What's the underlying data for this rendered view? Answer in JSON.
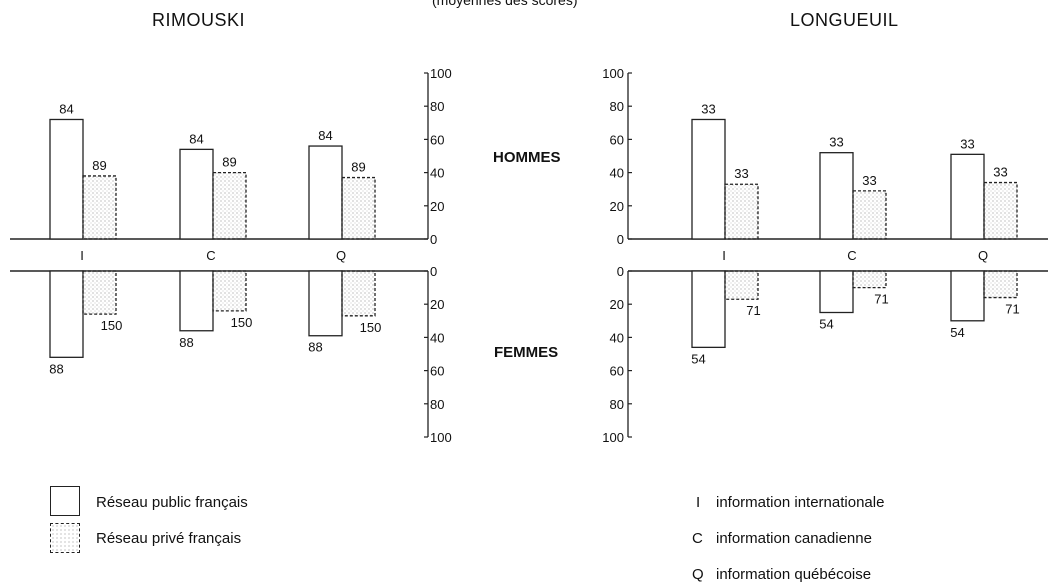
{
  "header": {
    "subtitle": "(moyennes des scores)"
  },
  "row_labels": {
    "men": "HOMMES",
    "women": "FEMMES"
  },
  "legend": {
    "public": "Réseau public français",
    "private": "Réseau privé français",
    "codes": [
      {
        "code": "I",
        "text": "information internationale"
      },
      {
        "code": "C",
        "text": "information canadienne"
      },
      {
        "code": "Q",
        "text": "information québécoise"
      }
    ]
  },
  "colors": {
    "line": "#222222",
    "public_fill": "#ffffff",
    "private_dots": "#9a9a9a"
  },
  "chart_data": [
    {
      "type": "bar",
      "title": "RIMOUSKI",
      "categories": [
        "I",
        "C",
        "Q"
      ],
      "ylim": [
        0,
        100
      ],
      "ticks": [
        0,
        20,
        40,
        60,
        80,
        100
      ],
      "series": [
        {
          "name": "Réseau public français",
          "men": [
            72,
            54,
            56
          ],
          "women": [
            52,
            36,
            39
          ],
          "labels_men": [
            "84",
            "84",
            "84"
          ],
          "labels_women": [
            "88",
            "88",
            "88"
          ]
        },
        {
          "name": "Réseau privé français",
          "men": [
            38,
            40,
            37
          ],
          "women": [
            26,
            24,
            27
          ],
          "labels_men": [
            "89",
            "89",
            "89"
          ],
          "labels_women": [
            "150",
            "150",
            "150"
          ]
        }
      ]
    },
    {
      "type": "bar",
      "title": "LONGUEUIL",
      "categories": [
        "I",
        "C",
        "Q"
      ],
      "ylim": [
        0,
        100
      ],
      "ticks": [
        0,
        20,
        40,
        60,
        80,
        100
      ],
      "series": [
        {
          "name": "Réseau public français",
          "men": [
            72,
            52,
            51
          ],
          "women": [
            46,
            25,
            30
          ],
          "labels_men": [
            "33",
            "33",
            "33"
          ],
          "labels_women": [
            "54",
            "54",
            "54"
          ]
        },
        {
          "name": "Réseau privé français",
          "men": [
            33,
            29,
            34
          ],
          "women": [
            17,
            10,
            16
          ],
          "labels_men": [
            "33",
            "33",
            "33"
          ],
          "labels_women": [
            "71",
            "71",
            "71"
          ]
        }
      ]
    }
  ]
}
